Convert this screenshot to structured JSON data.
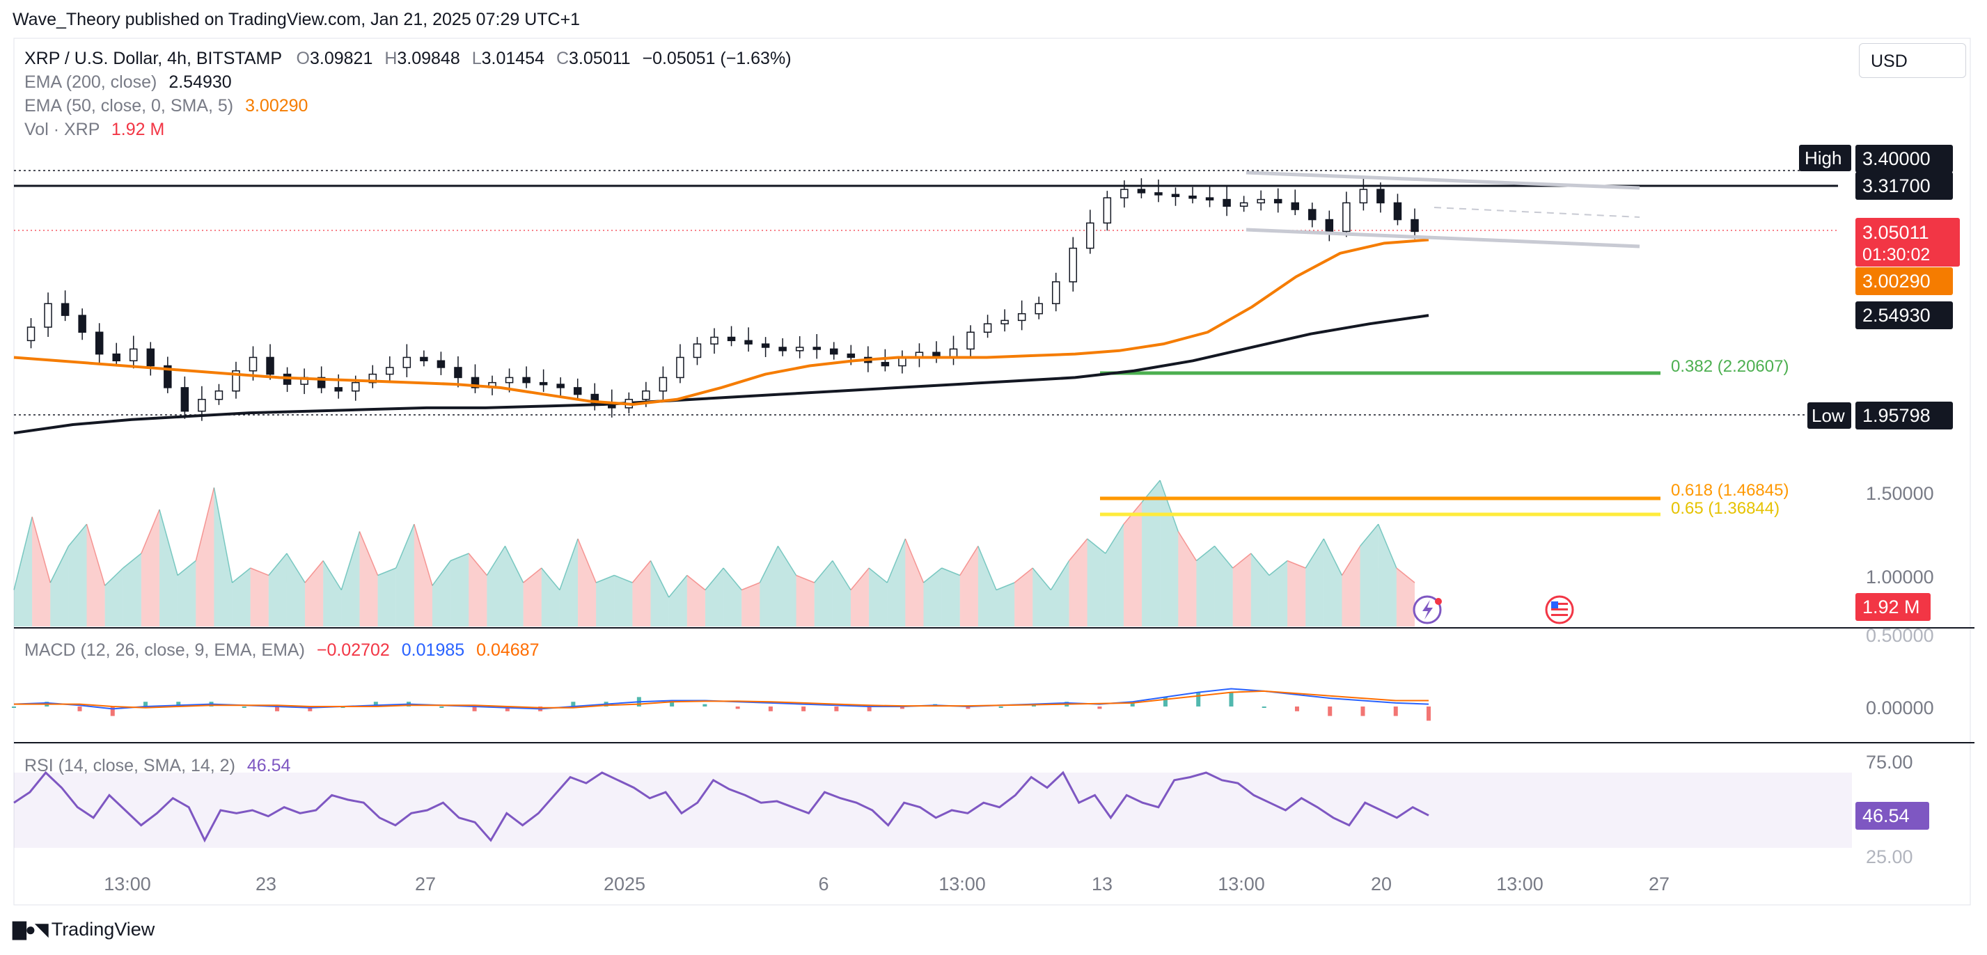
{
  "publisher_line": "Wave_Theory published on TradingView.com, Jan 21, 2025 07:29 UTC+1",
  "footer_brand": "TradingView",
  "currency_button": "USD",
  "legend": {
    "symbol": "XRP / U.S. Dollar, 4h, BITSTAMP",
    "o_key": "O",
    "o_val": "3.09821",
    "h_key": "H",
    "h_val": "3.09848",
    "l_key": "L",
    "l_val": "3.01454",
    "c_key": "C",
    "c_val": "3.05011",
    "change": "−0.05051 (−1.63%)",
    "ema200_label": "EMA (200, close)",
    "ema200_val": "2.54930",
    "ema50_label": "EMA (50, close, 0, SMA, 5)",
    "ema50_val": "3.00290",
    "vol_label": "Vol · XRP",
    "vol_val": "1.92 M"
  },
  "macd_legend": {
    "label": "MACD (12, 26, close, 9, EMA, EMA)",
    "hist": "−0.02702",
    "macd": "0.01985",
    "signal": "0.04687"
  },
  "rsi_legend": {
    "label": "RSI (14, close, SMA, 14, 2)",
    "value": "46.54"
  },
  "colors": {
    "up": "#26a69a",
    "down": "#ef5350",
    "ema50": "#f57c00",
    "ema200": "#131722",
    "fib382": "#4caf50",
    "fib618": "#ff9800",
    "fib65": "#ffeb3b",
    "macd": "#2962ff",
    "signal": "#ff6d00",
    "rsi": "#7e57c2",
    "last_price": "#f23645"
  },
  "chart_data": {
    "type": "candlestick",
    "symbol": "XRP / U.S. Dollar",
    "timeframe": "4h",
    "exchange": "BITSTAMP",
    "x_ticks": [
      "13:00",
      "23",
      "27",
      "2025",
      "6",
      "13:00",
      "13",
      "13:00",
      "20",
      "13:00",
      "27"
    ],
    "price_scale": {
      "ticks": [
        "1.50000",
        "1.00000",
        "0.50000",
        "0.00000"
      ],
      "ylim": [
        1.0,
        3.5
      ]
    },
    "price_path": [
      [
        2.4,
        2.48,
        2.62,
        2.55,
        2.45,
        2.32,
        2.28,
        2.35,
        2.25,
        2.12,
        1.98,
        2.05,
        2.1,
        2.22,
        2.3,
        2.2,
        2.14,
        2.18,
        2.12,
        2.1,
        2.15,
        2.2,
        2.24,
        2.3,
        2.28,
        2.24,
        2.18,
        2.12,
        2.15,
        2.18,
        2.15,
        2.14,
        2.12,
        2.08,
        2.03,
        2.0,
        2.05,
        2.1,
        2.18,
        2.3,
        2.38,
        2.42,
        2.4,
        2.38,
        2.36,
        2.34,
        2.36,
        2.35,
        2.32,
        2.3,
        2.27,
        2.25,
        2.3,
        2.33,
        2.3,
        2.35,
        2.45,
        2.5,
        2.52,
        2.56,
        2.62,
        2.75,
        2.95,
        3.1,
        3.25,
        3.3,
        3.28,
        3.27,
        3.26,
        3.25,
        3.24,
        3.2,
        3.22,
        3.24,
        3.22,
        3.18,
        3.12,
        3.05,
        3.22,
        3.3,
        3.22,
        3.12,
        3.05
      ]
    ],
    "last_close": 3.05011,
    "countdown": "01:30:02",
    "price_labels": {
      "high_tag": "High",
      "high": "3.40000",
      "level": "3.31700",
      "last": "3.05011",
      "ema50": "3.00290",
      "ema200": "2.54930",
      "low_tag": "Low",
      "low": "1.95798",
      "vol": "1.92 M"
    },
    "ema50_path": [
      2.3,
      2.28,
      2.26,
      2.24,
      2.22,
      2.2,
      2.18,
      2.17,
      2.16,
      2.15,
      2.14,
      2.12,
      2.08,
      2.04,
      2.02,
      2.05,
      2.12,
      2.2,
      2.25,
      2.28,
      2.3,
      2.3,
      2.3,
      2.31,
      2.32,
      2.34,
      2.38,
      2.45,
      2.6,
      2.78,
      2.92,
      2.98,
      3.0
    ],
    "ema200_path": [
      1.85,
      1.9,
      1.93,
      1.95,
      1.97,
      1.98,
      1.99,
      2.0,
      2.0,
      2.01,
      2.02,
      2.04,
      2.06,
      2.08,
      2.1,
      2.12,
      2.14,
      2.16,
      2.18,
      2.22,
      2.28,
      2.36,
      2.44,
      2.5,
      2.55
    ],
    "fibonacci": [
      {
        "label": "0.382 (2.20607)",
        "ratio": 0.382,
        "price": 2.20607
      },
      {
        "label": "0.618 (1.46845)",
        "ratio": 0.618,
        "price": 1.46845
      },
      {
        "label": "0.65 (1.36844)",
        "ratio": 0.65,
        "price": 1.36844
      }
    ],
    "volume": [
      0.25,
      0.75,
      0.3,
      0.55,
      0.7,
      0.28,
      0.4,
      0.5,
      0.8,
      0.35,
      0.45,
      0.95,
      0.3,
      0.4,
      0.35,
      0.5,
      0.3,
      0.45,
      0.25,
      0.65,
      0.35,
      0.4,
      0.7,
      0.28,
      0.45,
      0.5,
      0.35,
      0.55,
      0.3,
      0.4,
      0.25,
      0.6,
      0.3,
      0.35,
      0.3,
      0.45,
      0.2,
      0.35,
      0.25,
      0.4,
      0.25,
      0.3,
      0.55,
      0.35,
      0.3,
      0.45,
      0.25,
      0.4,
      0.3,
      0.6,
      0.3,
      0.4,
      0.35,
      0.55,
      0.25,
      0.3,
      0.4,
      0.25,
      0.45,
      0.6,
      0.5,
      0.7,
      0.85,
      1.0,
      0.65,
      0.45,
      0.55,
      0.4,
      0.5,
      0.35,
      0.45,
      0.4,
      0.6,
      0.35,
      0.55,
      0.7,
      0.4,
      0.3
    ],
    "macd": [
      0.02,
      0.03,
      0.01,
      -0.02,
      0.0,
      0.01,
      0.02,
      0.01,
      0.0,
      -0.01,
      0.0,
      0.01,
      0.02,
      0.01,
      0.0,
      -0.01,
      -0.02,
      0.0,
      0.02,
      0.04,
      0.05,
      0.05,
      0.04,
      0.03,
      0.02,
      0.01,
      0.0,
      0.0,
      0.01,
      0.0,
      0.01,
      0.02,
      0.03,
      0.02,
      0.04,
      0.08,
      0.12,
      0.15,
      0.13,
      0.1,
      0.07,
      0.05,
      0.03,
      0.02
    ],
    "macd_signal": [
      0.02,
      0.02,
      0.02,
      0.0,
      -0.01,
      0.0,
      0.01,
      0.01,
      0.01,
      0.0,
      0.0,
      0.0,
      0.01,
      0.01,
      0.01,
      0.0,
      -0.01,
      -0.01,
      0.01,
      0.02,
      0.04,
      0.045,
      0.045,
      0.04,
      0.03,
      0.02,
      0.01,
      0.005,
      0.005,
      0.005,
      0.01,
      0.015,
      0.02,
      0.025,
      0.03,
      0.06,
      0.09,
      0.12,
      0.13,
      0.11,
      0.09,
      0.07,
      0.05,
      0.05
    ],
    "macd_scale": {
      "ticks": [
        "0.00000"
      ]
    },
    "rsi": [
      55,
      62,
      75,
      65,
      52,
      45,
      60,
      50,
      40,
      48,
      58,
      52,
      30,
      50,
      48,
      50,
      46,
      52,
      48,
      50,
      60,
      57,
      55,
      45,
      40,
      48,
      50,
      55,
      45,
      42,
      30,
      48,
      40,
      48,
      60,
      72,
      68,
      75,
      70,
      65,
      58,
      62,
      48,
      55,
      70,
      64,
      60,
      55,
      56,
      52,
      48,
      62,
      58,
      55,
      50,
      40,
      55,
      52,
      45,
      50,
      48,
      55,
      52,
      60,
      72,
      65,
      75,
      55,
      60,
      45,
      60,
      55,
      52,
      70,
      72,
      75,
      70,
      68,
      60,
      55,
      50,
      58,
      52,
      45,
      40,
      55,
      50,
      45,
      52,
      46.54
    ],
    "rsi_scale": {
      "ticks": [
        "75.00",
        "25.00"
      ],
      "ylim": [
        25,
        75
      ]
    }
  }
}
